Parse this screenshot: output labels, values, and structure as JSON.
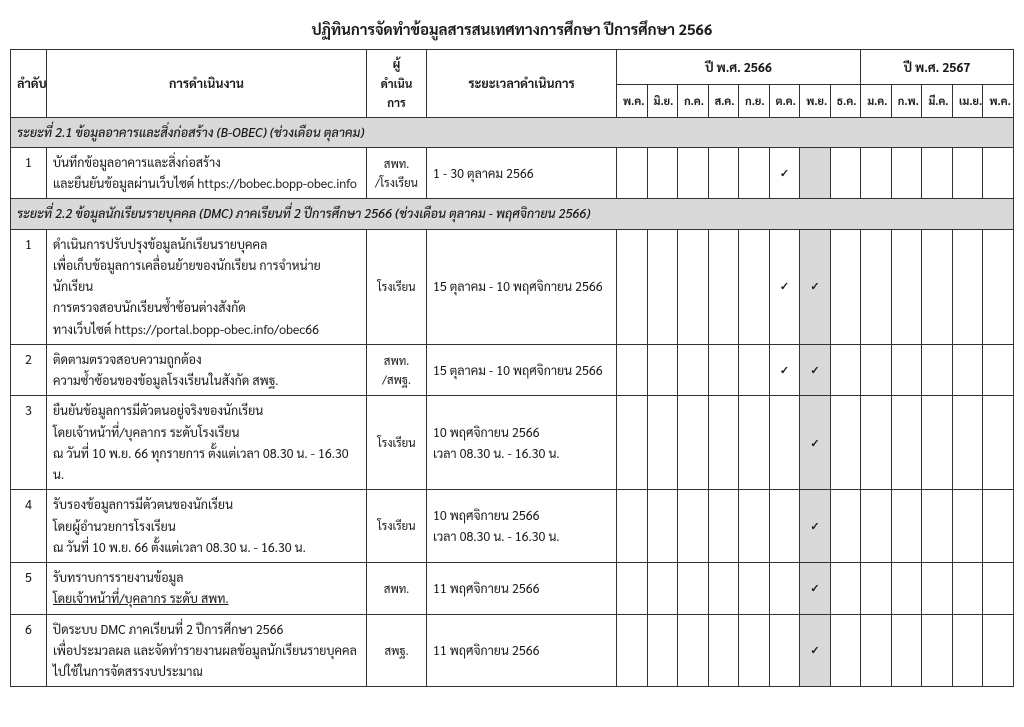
{
  "title": "ปฏิทินการจัดทำข้อมูลสารสนเทศทางการศึกษา ปีการศึกษา 2566",
  "headers": {
    "seq": "ลำดับ",
    "activity": "การดำเนินงาน",
    "responsible": "ผู้\nดำเนินการ",
    "period": "ระยะเวลาดำเนินการ",
    "year1": "ปี พ.ศ. 2566",
    "year2": "ปี พ.ศ. 2567",
    "months1": [
      "พ.ค.",
      "มิ.ย.",
      "ก.ค.",
      "ส.ค.",
      "ก.ย.",
      "ต.ค.",
      "พ.ย.",
      "ธ.ค."
    ],
    "months2": [
      "ม.ค.",
      "ก.พ.",
      "มี.ค.",
      "เม.ย.",
      "พ.ค."
    ]
  },
  "section1": {
    "label": "ระยะที่ 2.1 ข้อมูลอาคารและสิ่งก่อสร้าง (B-OBEC) (ช่วงเดือน ตุลาคม)",
    "rows": [
      {
        "seq": "1",
        "activity": "บันทึกข้อมูลอาคารและสิ่งก่อสร้าง\nและยืนยันข้อมูลผ่านเว็บไซต์ https://bobec.bopp-obec.info",
        "responsible": "สพท.\n/โรงเรียน",
        "period": "1 - 30 ตุลาคม 2566",
        "checks": [
          0,
          0,
          0,
          0,
          0,
          1,
          0,
          0,
          0,
          0,
          0,
          0,
          0
        ],
        "highlight": [
          0,
          0,
          0,
          0,
          0,
          0,
          1,
          0,
          0,
          0,
          0,
          0,
          0
        ]
      }
    ]
  },
  "section2": {
    "label": "ระยะที่ 2.2 ข้อมูลนักเรียนรายบุคคล (DMC) ภาคเรียนที่ 2 ปีการศึกษา 2566 (ช่วงเดือน ตุลาคม - พฤศจิกายน 2566)",
    "rows": [
      {
        "seq": "1",
        "activity": "ดำเนินการปรับปรุงข้อมูลนักเรียนรายบุคคล\nเพื่อเก็บข้อมูลการเคลื่อนย้ายของนักเรียน การจำหน่ายนักเรียน\nการตรวจสอบนักเรียนซ้ำซ้อนต่างสังกัด\nทางเว็บไซต์ https://portal.bopp-obec.info/obec66",
        "responsible": "โรงเรียน",
        "period": "15 ตุลาคม - 10 พฤศจิกายน 2566",
        "checks": [
          0,
          0,
          0,
          0,
          0,
          1,
          1,
          0,
          0,
          0,
          0,
          0,
          0
        ],
        "highlight": [
          0,
          0,
          0,
          0,
          0,
          0,
          1,
          0,
          0,
          0,
          0,
          0,
          0
        ]
      },
      {
        "seq": "2",
        "activity": "ติดตามตรวจสอบความถูกต้อง\nความซ้ำซ้อนของข้อมูลโรงเรียนในสังกัด สพฐ.",
        "responsible": "สพท.\n/สพฐ.",
        "period": "15 ตุลาคม - 10 พฤศจิกายน 2566",
        "checks": [
          0,
          0,
          0,
          0,
          0,
          1,
          1,
          0,
          0,
          0,
          0,
          0,
          0
        ],
        "highlight": [
          0,
          0,
          0,
          0,
          0,
          0,
          1,
          0,
          0,
          0,
          0,
          0,
          0
        ]
      },
      {
        "seq": "3",
        "activity": "ยืนยันข้อมูลการมีตัวตนอยู่จริงของนักเรียน\nโดยเจ้าหน้าที่/บุคลากร ระดับโรงเรียน\nณ วันที่ 10 พ.ย. 66 ทุกรายการ ตั้งแต่เวลา 08.30 น. - 16.30 น.",
        "responsible": "โรงเรียน",
        "period": "10 พฤศจิกายน 2566\nเวลา 08.30 น. - 16.30 น.",
        "checks": [
          0,
          0,
          0,
          0,
          0,
          0,
          1,
          0,
          0,
          0,
          0,
          0,
          0
        ],
        "highlight": [
          0,
          0,
          0,
          0,
          0,
          0,
          1,
          0,
          0,
          0,
          0,
          0,
          0
        ]
      },
      {
        "seq": "4",
        "activity": "รับรองข้อมูลการมีตัวตนของนักเรียน\nโดยผู้อำนวยการโรงเรียน\nณ วันที่ 10 พ.ย. 66 ตั้งแต่เวลา 08.30 น. - 16.30 น.",
        "responsible": "โรงเรียน",
        "period": "10 พฤศจิกายน 2566\nเวลา 08.30 น. - 16.30 น.",
        "checks": [
          0,
          0,
          0,
          0,
          0,
          0,
          1,
          0,
          0,
          0,
          0,
          0,
          0
        ],
        "highlight": [
          0,
          0,
          0,
          0,
          0,
          0,
          1,
          0,
          0,
          0,
          0,
          0,
          0
        ]
      },
      {
        "seq": "5",
        "activity": "รับทราบการรายงานข้อมูล",
        "activity_underline": "โดยเจ้าหน้าที่/บุคลากร ระดับ สพท.",
        "responsible": "สพท.",
        "period": "11 พฤศจิกายน 2566",
        "checks": [
          0,
          0,
          0,
          0,
          0,
          0,
          1,
          0,
          0,
          0,
          0,
          0,
          0
        ],
        "highlight": [
          0,
          0,
          0,
          0,
          0,
          0,
          1,
          0,
          0,
          0,
          0,
          0,
          0
        ]
      },
      {
        "seq": "6",
        "activity": "ปิดระบบ DMC ภาคเรียนที่ 2 ปีการศึกษา 2566\nเพื่อประมวลผล และจัดทำรายงานผลข้อมูลนักเรียนรายบุคคล\nไปใช้ในการจัดสรรงบประมาณ",
        "responsible": "สพฐ.",
        "period": "11 พฤศจิกายน 2566",
        "checks": [
          0,
          0,
          0,
          0,
          0,
          0,
          1,
          0,
          0,
          0,
          0,
          0,
          0
        ],
        "highlight": [
          0,
          0,
          0,
          0,
          0,
          0,
          1,
          0,
          0,
          0,
          0,
          0,
          0
        ]
      }
    ]
  },
  "checkmark": "✓"
}
